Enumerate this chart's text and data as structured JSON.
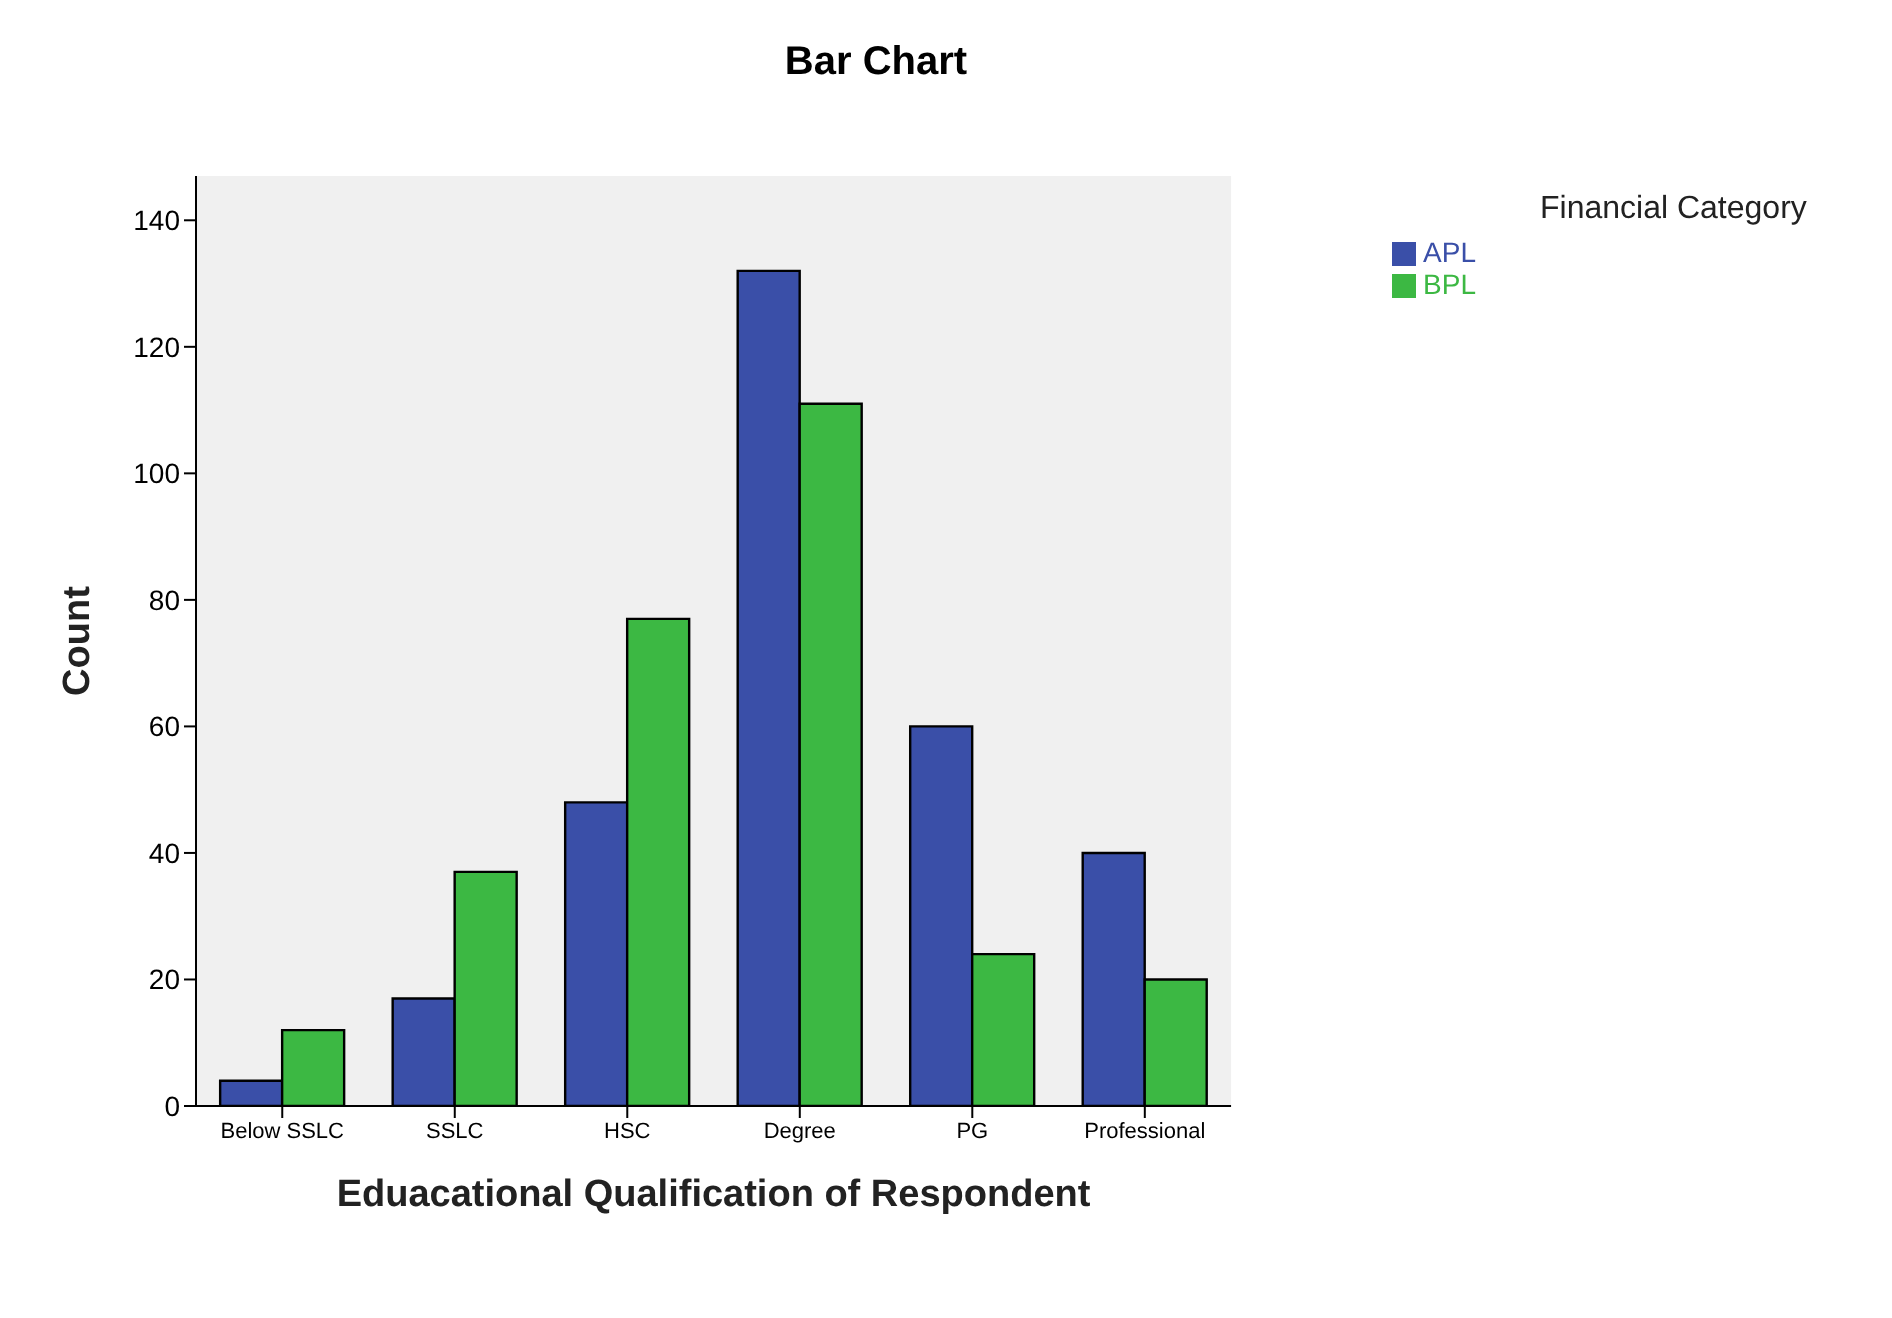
{
  "chart_data": {
    "type": "bar",
    "title": "Bar Chart",
    "xlabel": "Eduacational Qualification of Respondent",
    "ylabel": "Count",
    "legend_title": "Financial Category",
    "categories": [
      "Below SSLC",
      "SSLC",
      "HSC",
      "Degree",
      "PG",
      "Professional"
    ],
    "series": [
      {
        "name": "APL",
        "color": "#3a4fa8",
        "values": [
          4,
          17,
          48,
          132,
          60,
          40
        ]
      },
      {
        "name": "BPL",
        "color": "#3cb843",
        "values": [
          12,
          37,
          77,
          111,
          24,
          20
        ]
      }
    ],
    "ylim": [
      0,
      147
    ],
    "yticks": [
      0,
      20,
      40,
      60,
      80,
      100,
      120,
      140
    ],
    "grid": false,
    "legend": "top right"
  }
}
